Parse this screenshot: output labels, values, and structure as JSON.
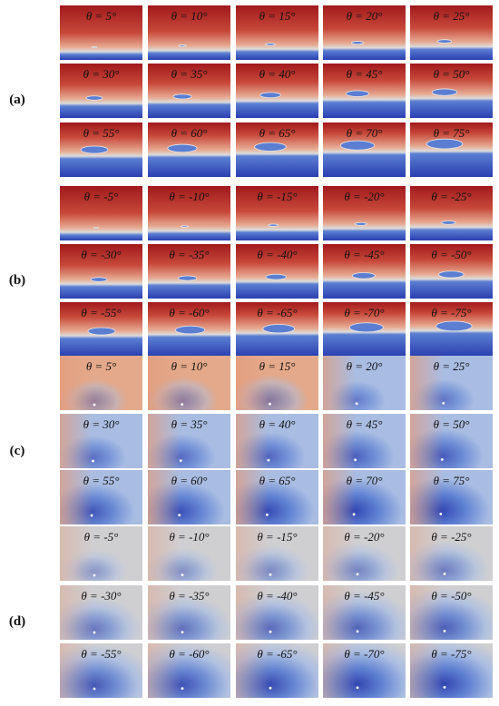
{
  "groups": [
    {
      "label": "(a)",
      "kind": "red",
      "rows": [
        [
          "θ = 5°",
          "θ = 10°",
          "θ = 15°",
          "θ = 20°",
          "θ = 25°"
        ],
        [
          "θ = 30°",
          "θ = 35°",
          "θ = 40°",
          "θ = 45°",
          "θ = 50°"
        ],
        [
          "θ = 55°",
          "θ = 60°",
          "θ = 65°",
          "θ = 70°",
          "θ = 75°"
        ]
      ]
    },
    {
      "label": "(b)",
      "kind": "red",
      "rows": [
        [
          "θ = -5°",
          "θ = -10°",
          "θ = -15°",
          "θ = -20°",
          "θ = -25°"
        ],
        [
          "θ = -30°",
          "θ = -35°",
          "θ = -40°",
          "θ = -45°",
          "θ = -50°"
        ],
        [
          "θ = -55°",
          "θ = -60°",
          "θ = -65°",
          "θ = -70°",
          "θ = -75°"
        ]
      ]
    },
    {
      "label": "(c)",
      "kind": "field",
      "rows": [
        [
          "θ = 5°",
          "θ = 10°",
          "θ = 15°",
          "θ = 20°",
          "θ = 25°"
        ],
        [
          "θ = 30°",
          "θ = 35°",
          "θ = 40°",
          "θ = 45°",
          "θ = 50°"
        ],
        [
          "θ = 55°",
          "θ = 60°",
          "θ = 65°",
          "θ = 70°",
          "θ = 75°"
        ]
      ]
    },
    {
      "label": "(d)",
      "kind": "field",
      "rows": [
        [
          "θ = -5°",
          "θ = -10°",
          "θ = -15°",
          "θ = -20°",
          "θ = -25°"
        ],
        [
          "θ = -30°",
          "θ = -35°",
          "θ = -40°",
          "θ = -45°",
          "θ = -50°"
        ],
        [
          "θ = -55°",
          "θ = -60°",
          "θ = -65°",
          "θ = -70°",
          "θ = -75°"
        ]
      ]
    }
  ],
  "colors": {
    "deep_red": "#a11a1c",
    "mid_red": "#c7483a",
    "light_red": "#e7ab93",
    "pale": "#dcdcdc",
    "light_blue": "#a9bde3",
    "mid_blue": "#5b7ed2",
    "deep_blue": "#2a3fb0"
  }
}
